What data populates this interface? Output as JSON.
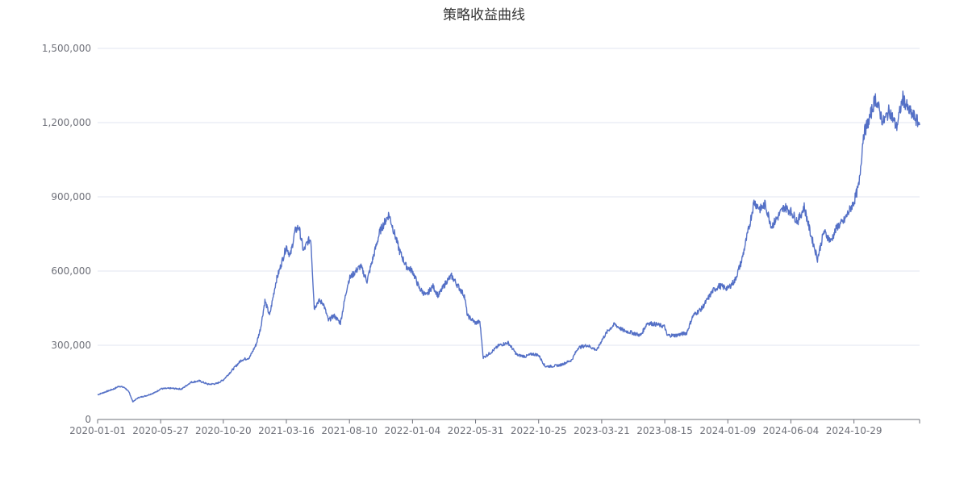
{
  "chart_data": {
    "type": "line",
    "title": "策略收益曲线",
    "xlabel": "",
    "ylabel": "",
    "ylim": [
      0,
      1500000
    ],
    "y_ticks": [
      0,
      300000,
      600000,
      900000,
      1200000,
      1500000
    ],
    "y_tick_labels": [
      "0",
      "300,000",
      "600,000",
      "900,000",
      "1,200,000",
      "1,500,000"
    ],
    "x_range": [
      "2020-01-01",
      "2025-03-31"
    ],
    "x_ticks": [
      "2020-01-01",
      "2020-05-27",
      "2020-10-20",
      "2021-03-16",
      "2021-08-10",
      "2022-01-04",
      "2022-05-31",
      "2022-10-25",
      "2023-03-21",
      "2023-08-15",
      "2024-01-09",
      "2024-06-04",
      "2024-10-29"
    ],
    "grid": true,
    "legend": "none",
    "series": [
      {
        "color": "#5470c6",
        "points": [
          [
            "2020-01-01",
            100000
          ],
          [
            "2020-01-20",
            112000
          ],
          [
            "2020-02-10",
            125000
          ],
          [
            "2020-02-20",
            135000
          ],
          [
            "2020-03-05",
            128000
          ],
          [
            "2020-03-15",
            108000
          ],
          [
            "2020-03-23",
            72000
          ],
          [
            "2020-04-05",
            88000
          ],
          [
            "2020-04-25",
            97000
          ],
          [
            "2020-05-15",
            110000
          ],
          [
            "2020-05-27",
            124000
          ],
          [
            "2020-06-20",
            126000
          ],
          [
            "2020-07-15",
            123000
          ],
          [
            "2020-08-05",
            150000
          ],
          [
            "2020-08-25",
            156000
          ],
          [
            "2020-09-15",
            142000
          ],
          [
            "2020-10-05",
            145000
          ],
          [
            "2020-10-20",
            160000
          ],
          [
            "2020-11-10",
            200000
          ],
          [
            "2020-12-01",
            240000
          ],
          [
            "2020-12-20",
            250000
          ],
          [
            "2021-01-05",
            305000
          ],
          [
            "2021-01-15",
            370000
          ],
          [
            "2021-01-25",
            480000
          ],
          [
            "2021-02-05",
            420000
          ],
          [
            "2021-02-20",
            560000
          ],
          [
            "2021-03-01",
            610000
          ],
          [
            "2021-03-16",
            700000
          ],
          [
            "2021-03-25",
            660000
          ],
          [
            "2021-04-05",
            760000
          ],
          [
            "2021-04-14",
            780000
          ],
          [
            "2021-04-25",
            680000
          ],
          [
            "2021-05-05",
            720000
          ],
          [
            "2021-05-12",
            730000
          ],
          [
            "2021-05-20",
            450000
          ],
          [
            "2021-05-30",
            480000
          ],
          [
            "2021-06-10",
            470000
          ],
          [
            "2021-06-22",
            400000
          ],
          [
            "2021-07-05",
            420000
          ],
          [
            "2021-07-20",
            390000
          ],
          [
            "2021-08-05",
            540000
          ],
          [
            "2021-08-10",
            570000
          ],
          [
            "2021-08-25",
            600000
          ],
          [
            "2021-09-05",
            620000
          ],
          [
            "2021-09-20",
            560000
          ],
          [
            "2021-10-05",
            660000
          ],
          [
            "2021-10-20",
            760000
          ],
          [
            "2021-11-01",
            800000
          ],
          [
            "2021-11-10",
            830000
          ],
          [
            "2021-11-25",
            740000
          ],
          [
            "2021-12-05",
            680000
          ],
          [
            "2021-12-20",
            620000
          ],
          [
            "2022-01-04",
            600000
          ],
          [
            "2022-01-20",
            530000
          ],
          [
            "2022-02-05",
            500000
          ],
          [
            "2022-02-20",
            540000
          ],
          [
            "2022-03-05",
            500000
          ],
          [
            "2022-03-25",
            560000
          ],
          [
            "2022-04-05",
            580000
          ],
          [
            "2022-04-20",
            540000
          ],
          [
            "2022-05-05",
            500000
          ],
          [
            "2022-05-12",
            420000
          ],
          [
            "2022-05-31",
            390000
          ],
          [
            "2022-06-10",
            395000
          ],
          [
            "2022-06-18",
            250000
          ],
          [
            "2022-07-05",
            270000
          ],
          [
            "2022-07-25",
            300000
          ],
          [
            "2022-08-15",
            310000
          ],
          [
            "2022-09-05",
            260000
          ],
          [
            "2022-09-25",
            255000
          ],
          [
            "2022-10-10",
            265000
          ],
          [
            "2022-10-25",
            260000
          ],
          [
            "2022-11-09",
            215000
          ],
          [
            "2022-11-25",
            215000
          ],
          [
            "2022-12-15",
            220000
          ],
          [
            "2023-01-10",
            240000
          ],
          [
            "2023-01-25",
            290000
          ],
          [
            "2023-02-15",
            300000
          ],
          [
            "2023-03-10",
            280000
          ],
          [
            "2023-03-21",
            320000
          ],
          [
            "2023-04-05",
            360000
          ],
          [
            "2023-04-20",
            385000
          ],
          [
            "2023-05-10",
            360000
          ],
          [
            "2023-06-01",
            350000
          ],
          [
            "2023-06-20",
            340000
          ],
          [
            "2023-07-05",
            390000
          ],
          [
            "2023-07-25",
            385000
          ],
          [
            "2023-08-15",
            375000
          ],
          [
            "2023-08-20",
            340000
          ],
          [
            "2023-09-10",
            340000
          ],
          [
            "2023-10-05",
            350000
          ],
          [
            "2023-10-20",
            420000
          ],
          [
            "2023-11-10",
            450000
          ],
          [
            "2023-12-05",
            520000
          ],
          [
            "2023-12-20",
            540000
          ],
          [
            "2024-01-09",
            530000
          ],
          [
            "2024-01-25",
            560000
          ],
          [
            "2024-02-10",
            640000
          ],
          [
            "2024-02-28",
            780000
          ],
          [
            "2024-03-10",
            880000
          ],
          [
            "2024-03-25",
            850000
          ],
          [
            "2024-04-05",
            870000
          ],
          [
            "2024-04-20",
            780000
          ],
          [
            "2024-05-05",
            820000
          ],
          [
            "2024-05-20",
            860000
          ],
          [
            "2024-06-04",
            840000
          ],
          [
            "2024-06-20",
            800000
          ],
          [
            "2024-07-05",
            860000
          ],
          [
            "2024-07-20",
            750000
          ],
          [
            "2024-08-05",
            650000
          ],
          [
            "2024-08-20",
            760000
          ],
          [
            "2024-09-05",
            720000
          ],
          [
            "2024-09-20",
            780000
          ],
          [
            "2024-10-05",
            800000
          ],
          [
            "2024-10-20",
            850000
          ],
          [
            "2024-10-29",
            880000
          ],
          [
            "2024-11-10",
            950000
          ],
          [
            "2024-11-20",
            1150000
          ],
          [
            "2024-12-05",
            1220000
          ],
          [
            "2024-12-18",
            1300000
          ],
          [
            "2025-01-05",
            1200000
          ],
          [
            "2025-01-20",
            1250000
          ],
          [
            "2025-02-05",
            1180000
          ],
          [
            "2025-02-20",
            1300000
          ],
          [
            "2025-03-05",
            1250000
          ],
          [
            "2025-03-20",
            1220000
          ],
          [
            "2025-03-31",
            1190000
          ]
        ]
      }
    ]
  }
}
